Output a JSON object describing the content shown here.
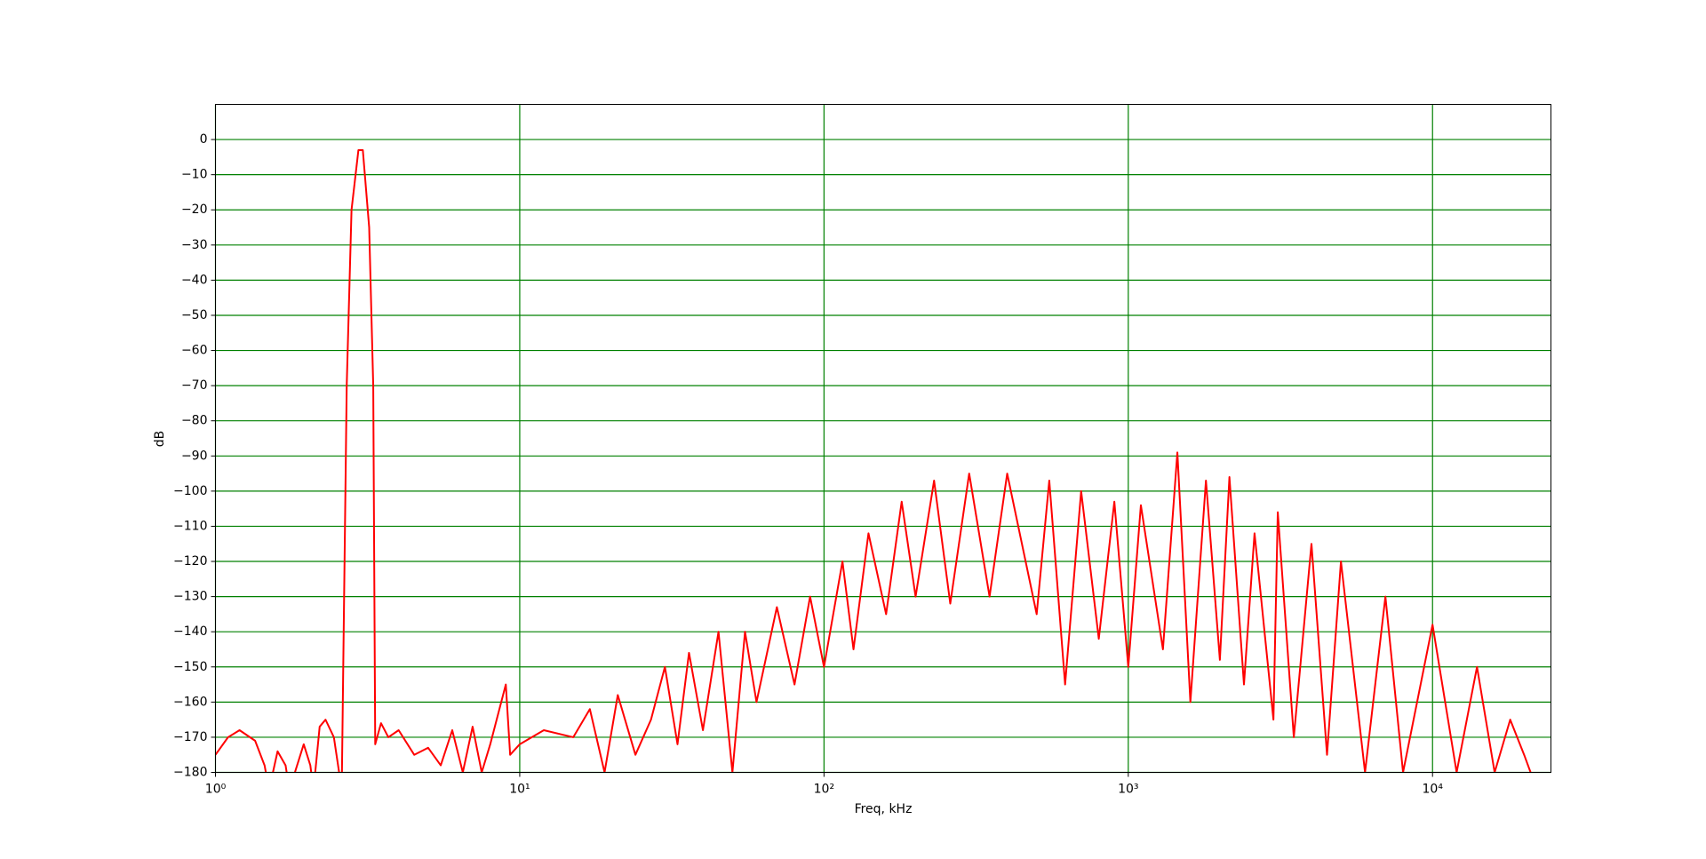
{
  "chart_data": {
    "type": "line",
    "x_label": "Freq, kHz",
    "y_label": "dB",
    "xscale": "log",
    "grid": true,
    "grid_color": "#008000",
    "xlim": [
      1,
      24500
    ],
    "ylim": [
      -180,
      10
    ],
    "xticks": [
      {
        "value": 1,
        "label": "10⁰"
      },
      {
        "value": 10,
        "label": "10¹"
      },
      {
        "value": 100,
        "label": "10²"
      },
      {
        "value": 1000,
        "label": "10³"
      },
      {
        "value": 10000,
        "label": "10⁴"
      }
    ],
    "yticks": [
      0,
      {
        "value": -10,
        "label": "−10"
      },
      {
        "value": -20,
        "label": "−20"
      },
      {
        "value": -30,
        "label": "−30"
      },
      {
        "value": -40,
        "label": "−40"
      },
      {
        "value": -50,
        "label": "−50"
      },
      {
        "value": -60,
        "label": "−60"
      },
      {
        "value": -70,
        "label": "−70"
      },
      {
        "value": -80,
        "label": "−80"
      },
      {
        "value": -90,
        "label": "−90"
      },
      {
        "value": -100,
        "label": "−100"
      },
      {
        "value": -110,
        "label": "−110"
      },
      {
        "value": -120,
        "label": "−120"
      },
      {
        "value": -130,
        "label": "−130"
      },
      {
        "value": -140,
        "label": "−140"
      },
      {
        "value": -150,
        "label": "−150"
      },
      {
        "value": -160,
        "label": "−160"
      },
      {
        "value": -170,
        "label": "−170"
      },
      {
        "value": -180,
        "label": "−180"
      }
    ],
    "x": [
      1,
      1.1,
      1.2,
      1.35,
      1.45,
      1.5,
      1.6,
      1.7,
      1.75,
      1.95,
      2.05,
      2.1,
      2.2,
      2.3,
      2.45,
      2.6,
      2.7,
      2.8,
      2.95,
      3.05,
      3.2,
      3.3,
      3.35,
      3.5,
      3.7,
      4,
      4.5,
      5,
      5.5,
      6,
      6.5,
      7,
      7.5,
      8,
      9,
      9.3,
      10,
      12,
      15,
      17,
      19,
      21,
      24,
      27,
      30,
      33,
      36,
      40,
      45,
      50,
      55,
      60,
      70,
      80,
      90,
      100,
      115,
      125,
      140,
      160,
      180,
      200,
      230,
      260,
      300,
      350,
      400,
      500,
      550,
      620,
      700,
      800,
      900,
      1000,
      1100,
      1300,
      1450,
      1600,
      1800,
      2000,
      2150,
      2400,
      2600,
      3000,
      3100,
      3500,
      4000,
      4500,
      5000,
      6000,
      7000,
      8000,
      10000,
      12000,
      14000,
      16000,
      18000,
      20000,
      21000
    ],
    "series": [
      {
        "color": "#ff0000",
        "values": [
          -175,
          -170,
          -168,
          -171,
          -178,
          -185,
          -174,
          -178,
          -185,
          -172,
          -178,
          -185,
          -167,
          -165,
          -170,
          -185,
          -70,
          -20,
          -3,
          -3,
          -25,
          -70,
          -172,
          -166,
          -170,
          -168,
          -175,
          -173,
          -178,
          -168,
          -180,
          -167,
          -180,
          -172,
          -155,
          -175,
          -172,
          -168,
          -170,
          -162,
          -180,
          -158,
          -175,
          -165,
          -150,
          -172,
          -146,
          -168,
          -140,
          -180,
          -140,
          -160,
          -133,
          -155,
          -130,
          -150,
          -120,
          -145,
          -112,
          -135,
          -103,
          -130,
          -97,
          -132,
          -95,
          -130,
          -95,
          -135,
          -97,
          -155,
          -100,
          -142,
          -103,
          -150,
          -104,
          -145,
          -89,
          -160,
          -97,
          -148,
          -96,
          -155,
          -112,
          -165,
          -106,
          -170,
          -115,
          -175,
          -120,
          -180,
          -130,
          -180,
          -138,
          -180,
          -150,
          -180,
          -165,
          -175,
          -180
        ]
      }
    ]
  }
}
